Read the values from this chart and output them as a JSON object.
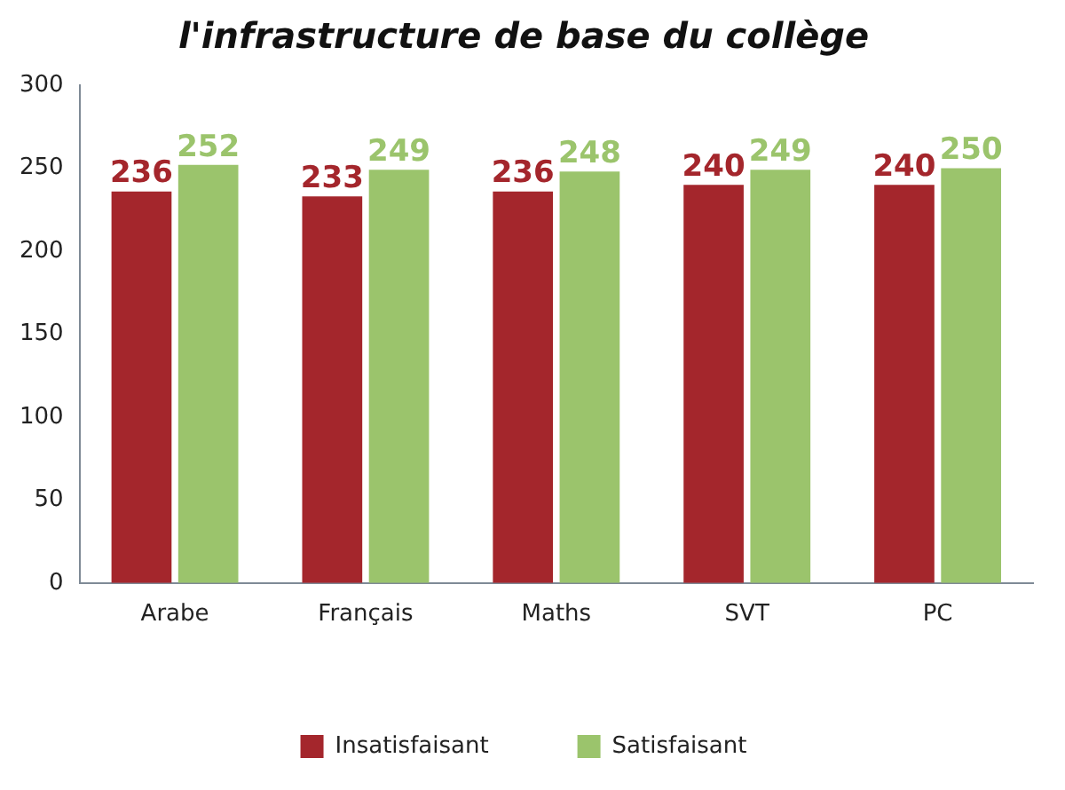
{
  "chart_data": {
    "type": "bar",
    "title": "l'infrastructure de base du collège",
    "categories": [
      "Arabe",
      "Français",
      "Maths",
      "SVT",
      "PC"
    ],
    "series": [
      {
        "name": "Insatisfaisant",
        "color": "#a4262c",
        "values": [
          236,
          233,
          236,
          240,
          240
        ]
      },
      {
        "name": "Satisfaisant",
        "color": "#9bc46c",
        "values": [
          252,
          249,
          248,
          249,
          250
        ]
      }
    ],
    "ylim": [
      0,
      300
    ],
    "yticks": [
      0,
      50,
      100,
      150,
      200,
      250,
      300
    ],
    "grid": false,
    "legend": "bottom",
    "data_labels": true
  }
}
